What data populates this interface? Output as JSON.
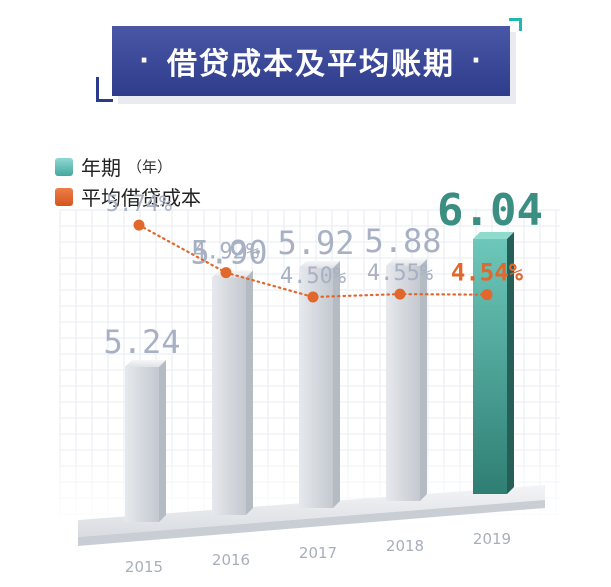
{
  "title": "借贷成本及平均账期",
  "legend": {
    "years_label": "年期",
    "years_unit": "（年）",
    "cost_label": "平均借贷成本"
  },
  "colors": {
    "banner": "#3a4799",
    "bar": "#d2d6dc",
    "highlight_bar": "#3f9f92",
    "cost_line": "#e2672d",
    "label_gray": "#a8b1c4"
  },
  "chart_data": {
    "type": "bar",
    "categories": [
      "2015",
      "2016",
      "2017",
      "2018",
      "2019"
    ],
    "series": [
      {
        "name": "年期",
        "values": [
          5.24,
          5.9,
          5.92,
          5.88,
          6.04
        ],
        "labels": [
          "5.24",
          "5.90",
          "5.92",
          "5.88",
          "6.04"
        ]
      },
      {
        "name": "平均借贷成本",
        "values": [
          5.74,
          4.92,
          4.5,
          4.55,
          4.54
        ],
        "labels": [
          "5.74%",
          "4.92%",
          "4.50%",
          "4.55%",
          "4.54%"
        ]
      }
    ],
    "highlight_category": "2019"
  }
}
